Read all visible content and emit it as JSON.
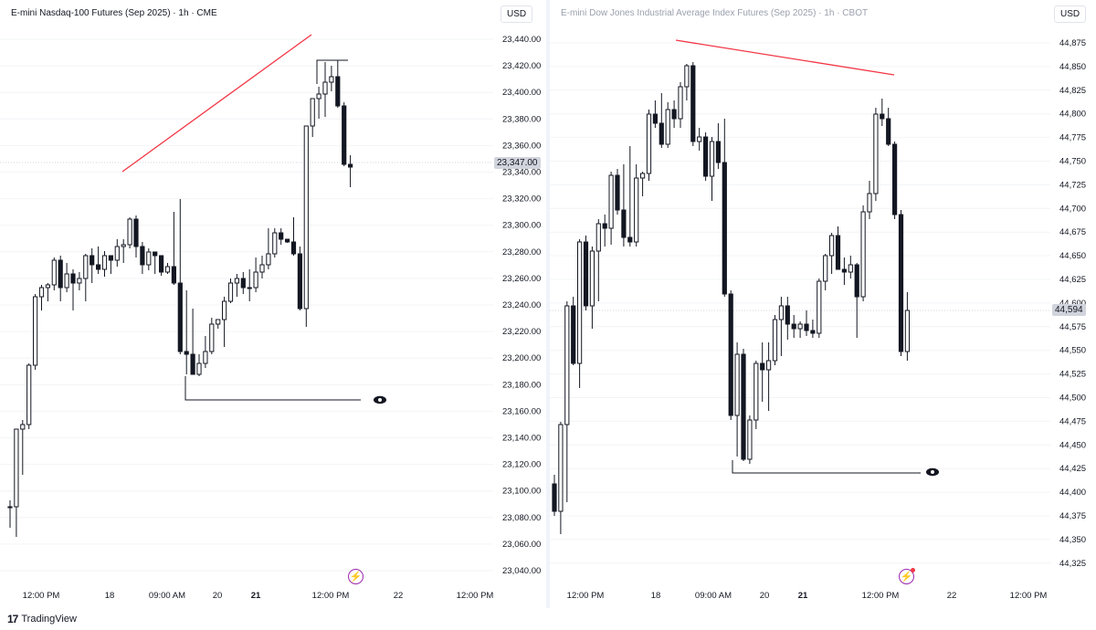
{
  "left": {
    "title": "E-mini Nasdaq-100 Futures (Sep 2025) · 1h · CME",
    "currency": "USD",
    "current_price": "23,347.00",
    "y_ticks": [
      "23,440.00",
      "23,420.00",
      "23,400.00",
      "23,380.00",
      "23,360.00",
      "23,340.00",
      "23,320.00",
      "23,300.00",
      "23,280.00",
      "23,260.00",
      "23,240.00",
      "23,220.00",
      "23,200.00",
      "23,180.00",
      "23,160.00",
      "23,140.00",
      "23,120.00",
      "23,100.00",
      "23,080.00",
      "23,060.00",
      "23,040.00"
    ],
    "x_ticks": [
      {
        "label": "12:00 PM",
        "bold": false
      },
      {
        "label": "18",
        "bold": false
      },
      {
        "label": "09:00 AM",
        "bold": false
      },
      {
        "label": "20",
        "bold": false
      },
      {
        "label": "21",
        "bold": true
      },
      {
        "label": "12:00 PM",
        "bold": false
      },
      {
        "label": "22",
        "bold": false
      },
      {
        "label": "12:00 PM",
        "bold": false
      }
    ],
    "trend_color": "#f23645"
  },
  "right": {
    "title": "E-mini Dow Jones Industrial Average Index Futures (Sep 2025) · 1h · CBOT",
    "currency": "USD",
    "current_price": "44,594",
    "y_ticks": [
      "44,875",
      "44,850",
      "44,825",
      "44,800",
      "44,775",
      "44,750",
      "44,725",
      "44,700",
      "44,675",
      "44,650",
      "44,625",
      "44,600",
      "44,575",
      "44,550",
      "44,525",
      "44,500",
      "44,475",
      "44,450",
      "44,425",
      "44,400",
      "44,375",
      "44,350",
      "44,325"
    ],
    "x_ticks": [
      {
        "label": "12:00 PM",
        "bold": false
      },
      {
        "label": "18",
        "bold": false
      },
      {
        "label": "09:00 AM",
        "bold": false
      },
      {
        "label": "20",
        "bold": false
      },
      {
        "label": "21",
        "bold": true
      },
      {
        "label": "12:00 PM",
        "bold": false
      },
      {
        "label": "22",
        "bold": false
      },
      {
        "label": "12:00 PM",
        "bold": false
      }
    ],
    "trend_color": "#f23645"
  },
  "footer": {
    "brand": "TradingView"
  },
  "icons": {
    "alert": "lightning-icon",
    "visibility": "eye-icon",
    "logo": "tradingview-logo-icon"
  }
}
